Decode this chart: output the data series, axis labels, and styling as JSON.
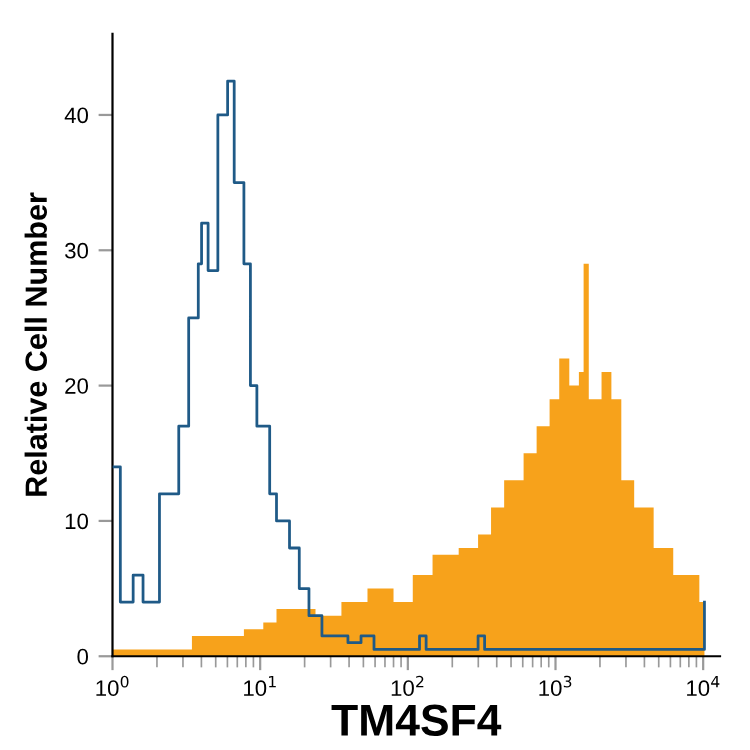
{
  "chart_data": {
    "type": "area",
    "xlabel": "TM4SF4",
    "ylabel": "Relative Cell Number",
    "log": "x",
    "xlim": [
      1,
      13000
    ],
    "ylim": [
      0,
      46
    ],
    "xticks": [
      {
        "value": 1,
        "label": "10$^{0}$"
      },
      {
        "value": 10,
        "label": "10$^{1}$"
      },
      {
        "value": 100,
        "label": "10$^{2}$"
      },
      {
        "value": 1000,
        "label": "10$^{3}$"
      },
      {
        "value": 10000,
        "label": "10$^{4}$"
      }
    ],
    "yticks": [
      0,
      10,
      20,
      30,
      40
    ],
    "grid": false,
    "legend": false,
    "series": [
      {
        "color": "#f7a21b",
        "x": [
          1,
          3.11,
          3.45,
          4.67,
          7.76,
          10.5,
          12.9,
          17.5,
          23.7,
          35.5,
          53.3,
          80,
          108,
          147,
          221,
          299,
          366,
          449,
          608,
          745,
          912,
          1060,
          1240,
          1440,
          1550,
          1680,
          2050,
          2390,
          2790,
          3410,
          4620,
          6270,
          8070,
          9420,
          10200
        ],
        "values": [
          0.5,
          0.5,
          1.5,
          1.5,
          2,
          2.5,
          3.5,
          3.5,
          3,
          4,
          5,
          4,
          6,
          7.5,
          8,
          9,
          11,
          13,
          15,
          17,
          19,
          22,
          20,
          21,
          29,
          19,
          21,
          19,
          13,
          11,
          8,
          6,
          6,
          4,
          5
        ]
      },
      {
        "type": "step",
        "color": "#1f5a87",
        "x": [
          1.02,
          1.13,
          1.38,
          1.61,
          2.08,
          2.54,
          2.81,
          3.28,
          3.81,
          4.01,
          4.44,
          5.17,
          6.02,
          6.67,
          7.76,
          8.59,
          9.5,
          10.5,
          11.6,
          12.9,
          15.8,
          18.4,
          21.4,
          26.2,
          39.3,
          48.2,
          59,
          103,
          120,
          133,
          299,
          331,
          9900,
          10200
        ],
        "values": [
          14,
          4,
          6,
          4,
          12,
          12,
          17,
          25,
          29,
          32,
          28.5,
          40,
          42.5,
          35,
          29,
          20,
          17,
          17,
          12,
          10,
          8,
          5,
          3,
          1.5,
          1,
          1.5,
          0.5,
          0.5,
          1.5,
          0.5,
          1.5,
          0.5,
          0.5,
          4
        ]
      }
    ]
  }
}
